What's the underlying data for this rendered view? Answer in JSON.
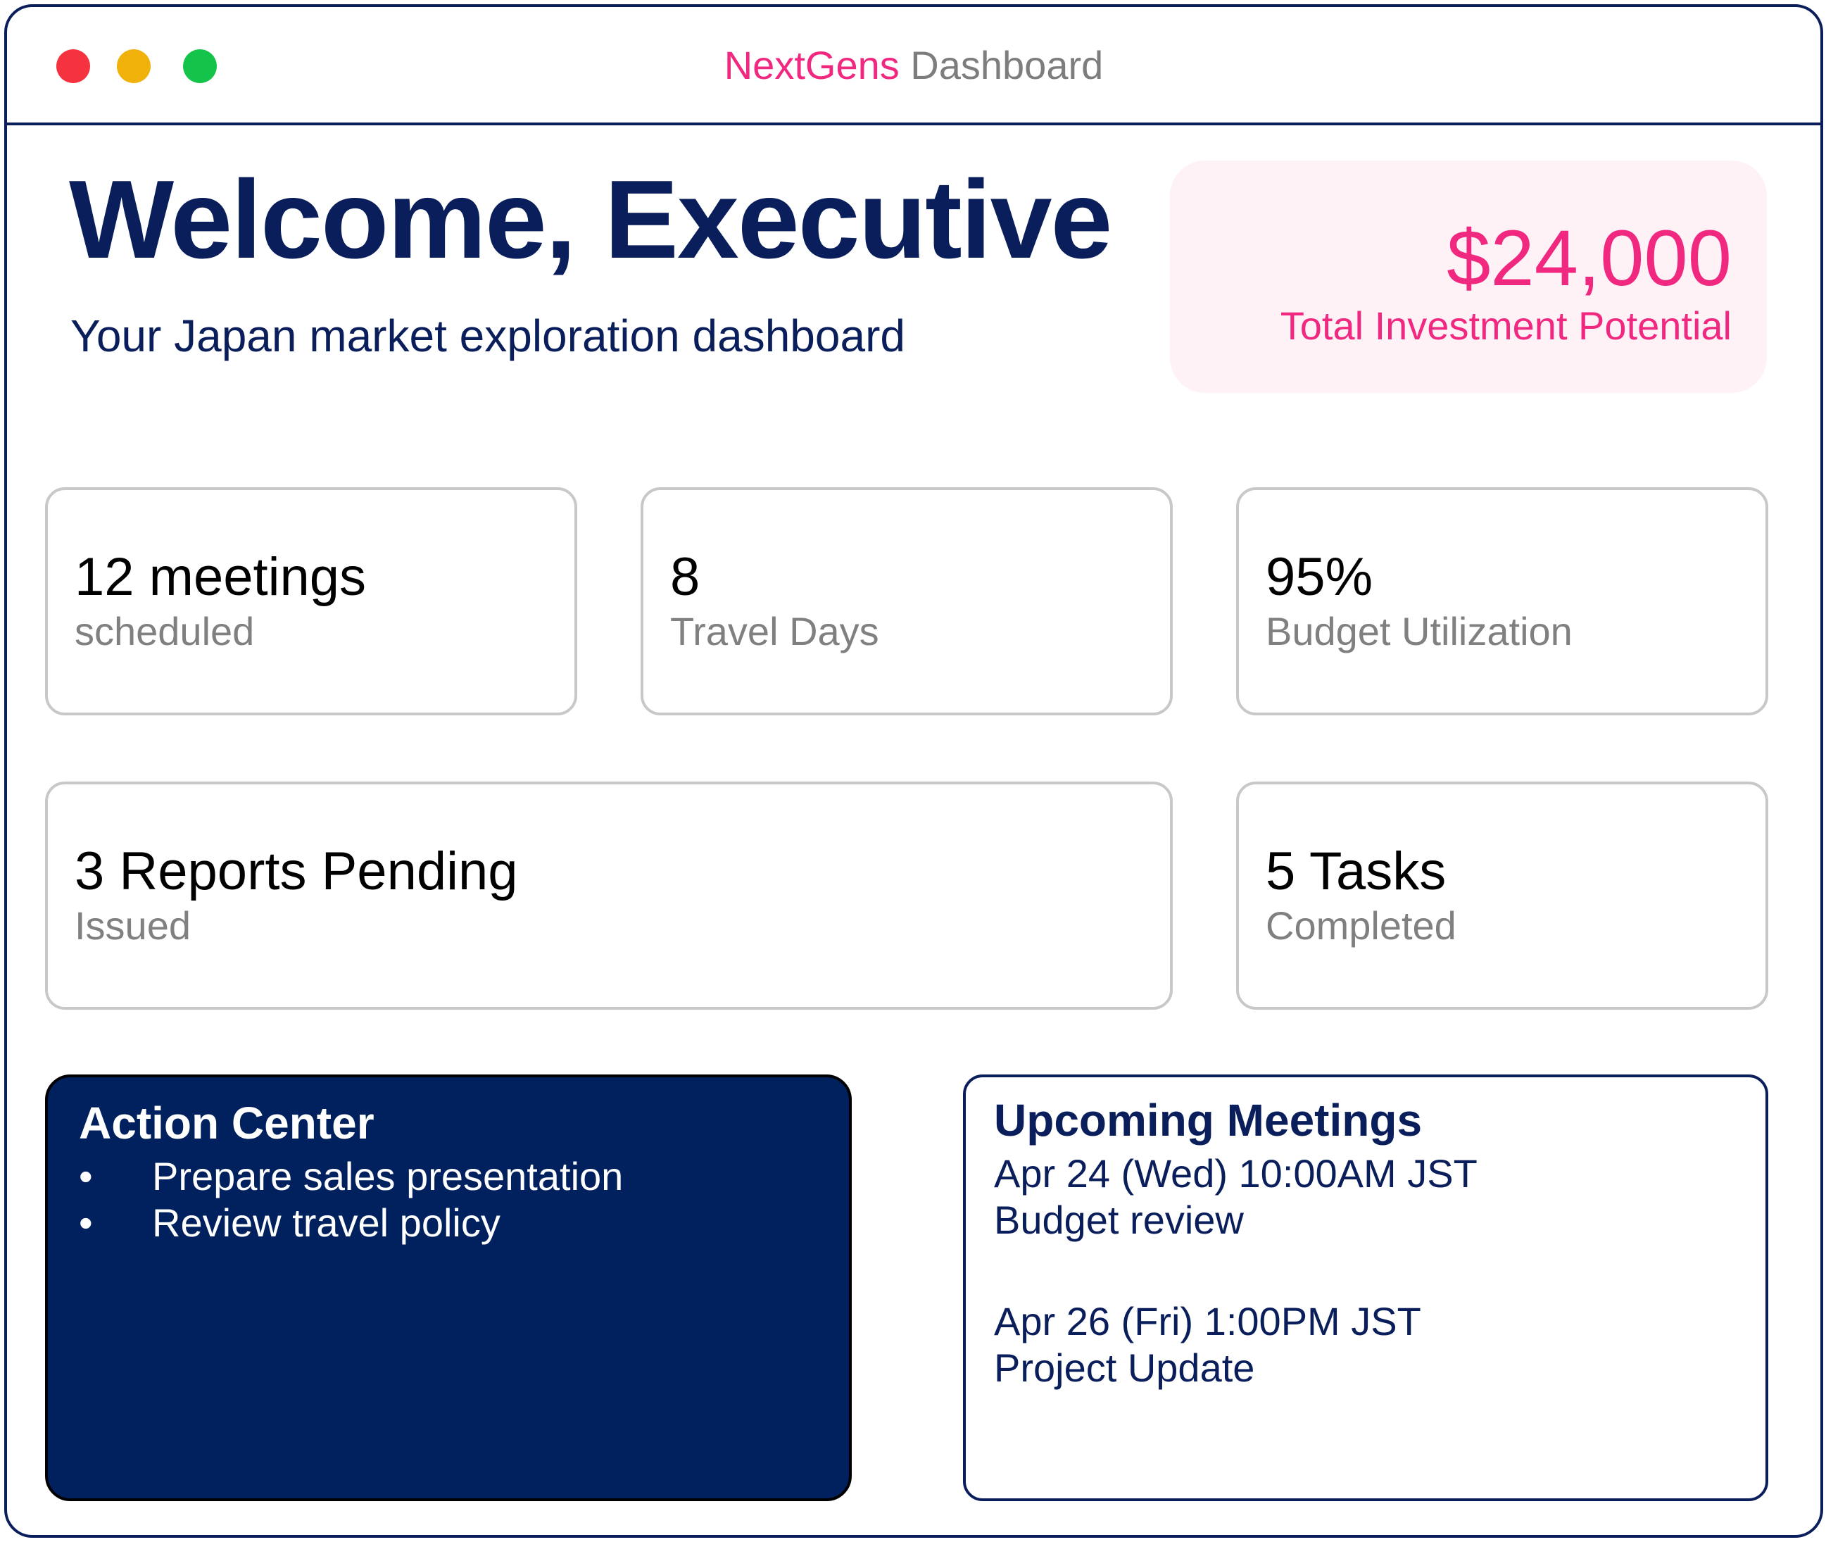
{
  "window": {
    "title_brand": "NextGens",
    "title_rest": " Dashboard"
  },
  "header": {
    "welcome": "Welcome, Executive",
    "subtitle": "Your Japan market exploration dashboard"
  },
  "investment": {
    "amount": "$24,000",
    "label": "Total Investment Potential"
  },
  "stats": {
    "meetings": {
      "value": "12 meetings",
      "label": "scheduled"
    },
    "travel": {
      "value": "8",
      "label": "Travel Days"
    },
    "budget": {
      "value": "95%",
      "label": "Budget Utilization"
    },
    "reports": {
      "value": "3 Reports Pending",
      "label": "Issued"
    },
    "tasks": {
      "value": "5 Tasks",
      "label": "Completed"
    }
  },
  "action_center": {
    "title": "Action Center",
    "items": [
      "Prepare sales presentation",
      "Review travel policy"
    ]
  },
  "upcoming_meetings": {
    "title": "Upcoming Meetings",
    "meetings": [
      {
        "when": "Apr 24 (Wed) 10:00AM JST",
        "what": "Budget review"
      },
      {
        "when": "Apr 26 (Fri) 1:00PM JST",
        "what": "Project Update"
      }
    ]
  },
  "colors": {
    "navy": "#0a1e5c",
    "pink": "#f0287f",
    "action_bg": "#00205e",
    "invest_bg": "#fff2f7",
    "close": "#f5323f",
    "minimize": "#f0b10a",
    "maximize": "#14c44a"
  }
}
